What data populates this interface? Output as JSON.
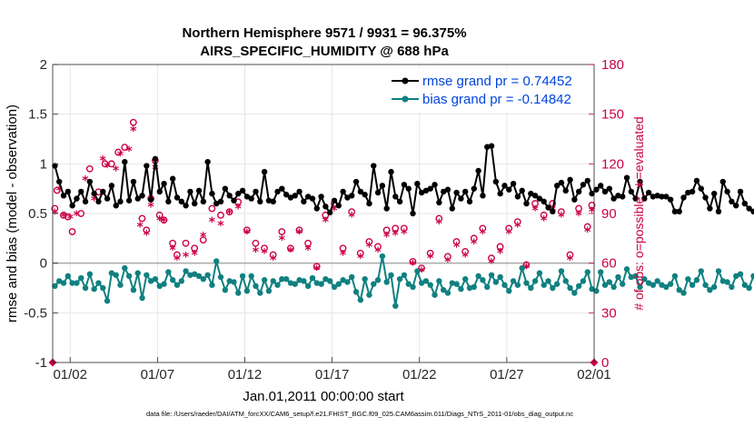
{
  "chart_data": {
    "type": "line",
    "title_line1": "Northern Hemisphere 9571 / 9931 = 96.375%",
    "title_line2": "AIRS_SPECIFIC_HUMIDITY @ 688 hPa",
    "xlabel": "Jan.01,2011 00:00:00 start",
    "ylabel": "rmse and bias (model - observation)",
    "y2label": "# of obs: o=possible; ∗=evaluated",
    "footer": "data file: /Users/raeder/DAI/ATM_forcXX/CAM6_setup/f.e21.FHIST_BGC.f09_025.CAM6assim.011/Diags_NTrS_2011-01/obs_diag_output.nc",
    "xlim": [
      0.5,
      31.5
    ],
    "ylim": [
      -1,
      2
    ],
    "y2lim": [
      0,
      180
    ],
    "x_ticks": [
      1.5,
      6.5,
      11.5,
      16.5,
      21.5,
      26.5,
      31.5
    ],
    "x_tick_labels": [
      "01/02",
      "01/07",
      "01/12",
      "01/17",
      "01/22",
      "01/27",
      "02/01"
    ],
    "y_ticks": [
      -1,
      -0.5,
      0,
      0.5,
      1,
      1.5,
      2
    ],
    "y_tick_labels": [
      "-1",
      "-0.5",
      "0",
      "0.5",
      "1",
      "1.5",
      "2"
    ],
    "y2_ticks": [
      0,
      30,
      60,
      90,
      120,
      150,
      180
    ],
    "y2_tick_labels": [
      "0",
      "30",
      "60",
      "90",
      "120",
      "150",
      "180"
    ],
    "colors": {
      "rmse": "#000000",
      "bias": "#108080",
      "obs": "#cc0044",
      "zero_line": "#aaaaaa",
      "grid": "#e6e6e6"
    },
    "legend": {
      "location": "top-right",
      "rmse_label": "rmse grand pr = 0.74452",
      "bias_label": "bias grand pr = -0.14842"
    },
    "series": [
      {
        "name": "rmse",
        "x_start": 0.625,
        "x_step": 0.25,
        "values": [
          0.98,
          0.82,
          0.68,
          0.72,
          0.58,
          0.65,
          0.72,
          0.62,
          0.82,
          0.7,
          0.62,
          0.72,
          0.65,
          0.78,
          0.58,
          0.62,
          1.02,
          0.63,
          0.82,
          0.65,
          0.68,
          0.98,
          0.64,
          1.05,
          0.72,
          0.8,
          0.62,
          0.85,
          0.66,
          0.62,
          0.58,
          0.72,
          0.6,
          0.73,
          0.62,
          1.02,
          0.7,
          0.6,
          0.62,
          0.75,
          0.68,
          0.63,
          0.7,
          0.73,
          0.67,
          0.65,
          0.72,
          0.62,
          0.92,
          0.63,
          0.62,
          0.72,
          0.75,
          0.69,
          0.66,
          0.68,
          0.72,
          0.62,
          0.67,
          0.65,
          0.55,
          0.67,
          0.57,
          0.51,
          0.63,
          0.58,
          0.72,
          0.66,
          0.68,
          0.82,
          0.72,
          0.69,
          0.6,
          0.98,
          0.71,
          0.78,
          0.55,
          0.92,
          0.67,
          0.62,
          0.79,
          0.75,
          0.5,
          0.8,
          0.71,
          0.73,
          0.75,
          0.79,
          0.61,
          0.72,
          0.74,
          0.55,
          0.71,
          0.65,
          0.72,
          0.62,
          0.75,
          0.93,
          0.68,
          1.17,
          1.18,
          0.82,
          0.7,
          0.78,
          0.74,
          0.8,
          0.67,
          0.73,
          0.6,
          0.7,
          0.68,
          0.65,
          0.62,
          0.56,
          0.52,
          0.78,
          0.81,
          0.73,
          0.84,
          0.64,
          0.72,
          0.79,
          0.83,
          0.7,
          0.74,
          0.78,
          0.72,
          0.75,
          0.65,
          0.68,
          0.67,
          0.86,
          0.72,
          0.65,
          0.82,
          0.65,
          0.71,
          0.67,
          0.68,
          0.67,
          0.67,
          0.64,
          0.52,
          0.52,
          0.66,
          0.71,
          0.72,
          0.83,
          0.75,
          0.66,
          0.55,
          0.7,
          0.52,
          0.82,
          0.72,
          0.62,
          0.58,
          0.72,
          0.6,
          0.55,
          0.52
        ]
      },
      {
        "name": "bias",
        "x_start": 0.625,
        "x_step": 0.25,
        "values": [
          -0.23,
          -0.18,
          -0.2,
          -0.13,
          -0.2,
          -0.2,
          -0.15,
          -0.25,
          -0.11,
          -0.26,
          -0.2,
          -0.25,
          -0.38,
          -0.1,
          -0.12,
          -0.22,
          -0.05,
          -0.13,
          -0.27,
          -0.1,
          -0.35,
          -0.12,
          -0.18,
          -0.16,
          -0.23,
          -0.21,
          -0.09,
          -0.17,
          -0.22,
          -0.18,
          -0.08,
          -0.12,
          -0.11,
          -0.13,
          -0.16,
          -0.12,
          -0.22,
          0.02,
          -0.14,
          -0.27,
          -0.18,
          -0.19,
          -0.3,
          -0.13,
          -0.28,
          -0.13,
          -0.23,
          -0.3,
          -0.17,
          -0.28,
          -0.18,
          -0.22,
          -0.16,
          -0.16,
          -0.2,
          -0.21,
          -0.17,
          -0.18,
          -0.23,
          -0.15,
          -0.2,
          -0.21,
          -0.16,
          -0.18,
          -0.24,
          -0.21,
          -0.17,
          -0.19,
          -0.14,
          -0.29,
          -0.37,
          -0.16,
          -0.32,
          -0.21,
          -0.17,
          0.07,
          -0.19,
          -0.12,
          -0.43,
          -0.16,
          -0.12,
          -0.21,
          -0.24,
          -0.08,
          -0.2,
          -0.18,
          -0.22,
          -0.32,
          -0.18,
          -0.27,
          -0.3,
          -0.2,
          -0.21,
          -0.26,
          -0.16,
          -0.25,
          -0.24,
          -0.13,
          -0.17,
          -0.24,
          -0.12,
          -0.19,
          -0.14,
          -0.22,
          -0.28,
          -0.18,
          -0.22,
          -0.05,
          -0.2,
          -0.25,
          -0.18,
          -0.1,
          -0.22,
          -0.18,
          -0.25,
          -0.21,
          -0.08,
          -0.18,
          -0.25,
          -0.3,
          -0.23,
          -0.18,
          -0.09,
          -0.26,
          -0.28,
          -0.09,
          -0.22,
          -0.19,
          -0.24,
          -0.14,
          -0.21,
          -0.06,
          -0.14,
          -0.13,
          -0.24,
          -0.16,
          -0.2,
          -0.22,
          -0.18,
          -0.22,
          -0.24,
          -0.21,
          -0.13,
          -0.27,
          -0.3,
          -0.16,
          -0.22,
          -0.17,
          -0.08,
          -0.22,
          -0.27,
          -0.24,
          -0.08,
          -0.18,
          -0.19,
          -0.24,
          -0.13,
          -0.11,
          -0.22,
          -0.25,
          -0.13
        ]
      }
    ],
    "obs_possible": [
      [
        0.62,
        93
      ],
      [
        0.75,
        104
      ],
      [
        1.12,
        89
      ],
      [
        1.37,
        88
      ],
      [
        1.62,
        79
      ],
      [
        2.12,
        90
      ],
      [
        2.62,
        117
      ],
      [
        3.12,
        103
      ],
      [
        3.5,
        120
      ],
      [
        3.87,
        120
      ],
      [
        4.25,
        127
      ],
      [
        4.62,
        130
      ],
      [
        5.12,
        145
      ],
      [
        5.62,
        87
      ],
      [
        5.87,
        80
      ],
      [
        6.12,
        99
      ],
      [
        6.37,
        122
      ],
      [
        6.62,
        89
      ],
      [
        6.87,
        86
      ],
      [
        7.37,
        72
      ],
      [
        7.62,
        65
      ],
      [
        8.12,
        72
      ],
      [
        8.62,
        69
      ],
      [
        9.12,
        74
      ],
      [
        9.62,
        93
      ],
      [
        10.12,
        89
      ],
      [
        10.62,
        91
      ],
      [
        11.12,
        97
      ],
      [
        11.62,
        80
      ],
      [
        12.12,
        72
      ],
      [
        12.62,
        69
      ],
      [
        13.12,
        65
      ],
      [
        13.62,
        79
      ],
      [
        14.12,
        69
      ],
      [
        14.62,
        80
      ],
      [
        15.12,
        72
      ],
      [
        15.62,
        58
      ],
      [
        16.12,
        89
      ],
      [
        16.62,
        96
      ],
      [
        17.12,
        69
      ],
      [
        17.62,
        91
      ],
      [
        18.12,
        66
      ],
      [
        18.62,
        73
      ],
      [
        19.12,
        70
      ],
      [
        19.62,
        80
      ],
      [
        20.12,
        81
      ],
      [
        20.62,
        81
      ],
      [
        21.12,
        61
      ],
      [
        21.62,
        57
      ],
      [
        22.12,
        66
      ],
      [
        22.62,
        87
      ],
      [
        23.12,
        64
      ],
      [
        23.62,
        73
      ],
      [
        24.12,
        67
      ],
      [
        24.62,
        75
      ],
      [
        25.12,
        81
      ],
      [
        25.62,
        63
      ],
      [
        26.12,
        70
      ],
      [
        26.62,
        81
      ],
      [
        27.12,
        85
      ],
      [
        27.62,
        59
      ],
      [
        28.12,
        96
      ],
      [
        28.62,
        89
      ],
      [
        29.12,
        96
      ],
      [
        29.62,
        91
      ],
      [
        30.12,
        65
      ],
      [
        30.62,
        93
      ],
      [
        31.12,
        82
      ],
      [
        31.37,
        95
      ]
    ],
    "obs_evaluated": [
      [
        0.62,
        90
      ],
      [
        0.87,
        104
      ],
      [
        1.12,
        88
      ],
      [
        1.5,
        87
      ],
      [
        1.87,
        89
      ],
      [
        2.37,
        110
      ],
      [
        2.87,
        98
      ],
      [
        3.37,
        122
      ],
      [
        3.62,
        118
      ],
      [
        4.12,
        116
      ],
      [
        4.37,
        125
      ],
      [
        4.87,
        128
      ],
      [
        5.12,
        140
      ],
      [
        5.5,
        82
      ],
      [
        5.87,
        77
      ],
      [
        6.12,
        94
      ],
      [
        6.37,
        117
      ],
      [
        6.62,
        86
      ],
      [
        6.87,
        85
      ],
      [
        7.37,
        68
      ],
      [
        7.62,
        62
      ],
      [
        8.12,
        64
      ],
      [
        8.62,
        65
      ],
      [
        9.12,
        76
      ],
      [
        9.62,
        85
      ],
      [
        10.12,
        83
      ],
      [
        10.62,
        90
      ],
      [
        11.12,
        93
      ],
      [
        11.62,
        78
      ],
      [
        12.12,
        67
      ],
      [
        12.62,
        66
      ],
      [
        13.12,
        62
      ],
      [
        13.62,
        74
      ],
      [
        14.12,
        67
      ],
      [
        14.62,
        78
      ],
      [
        15.12,
        68
      ],
      [
        15.62,
        56
      ],
      [
        16.12,
        85
      ],
      [
        16.62,
        92
      ],
      [
        17.12,
        65
      ],
      [
        17.62,
        88
      ],
      [
        18.12,
        63
      ],
      [
        18.62,
        70
      ],
      [
        19.12,
        67
      ],
      [
        19.62,
        76
      ],
      [
        20.12,
        77
      ],
      [
        20.62,
        78
      ],
      [
        21.12,
        59
      ],
      [
        21.62,
        55
      ],
      [
        22.12,
        63
      ],
      [
        22.62,
        84
      ],
      [
        23.12,
        61
      ],
      [
        23.62,
        70
      ],
      [
        24.12,
        64
      ],
      [
        24.62,
        72
      ],
      [
        25.12,
        78
      ],
      [
        25.62,
        60
      ],
      [
        26.12,
        66
      ],
      [
        26.62,
        78
      ],
      [
        27.12,
        82
      ],
      [
        27.62,
        57
      ],
      [
        28.12,
        92
      ],
      [
        28.62,
        86
      ],
      [
        29.12,
        92
      ],
      [
        29.62,
        88
      ],
      [
        30.12,
        62
      ],
      [
        30.62,
        89
      ],
      [
        31.12,
        79
      ],
      [
        31.37,
        91
      ]
    ],
    "extra_markers": [
      [
        0.5,
        -1
      ],
      [
        31.5,
        -1
      ]
    ]
  }
}
